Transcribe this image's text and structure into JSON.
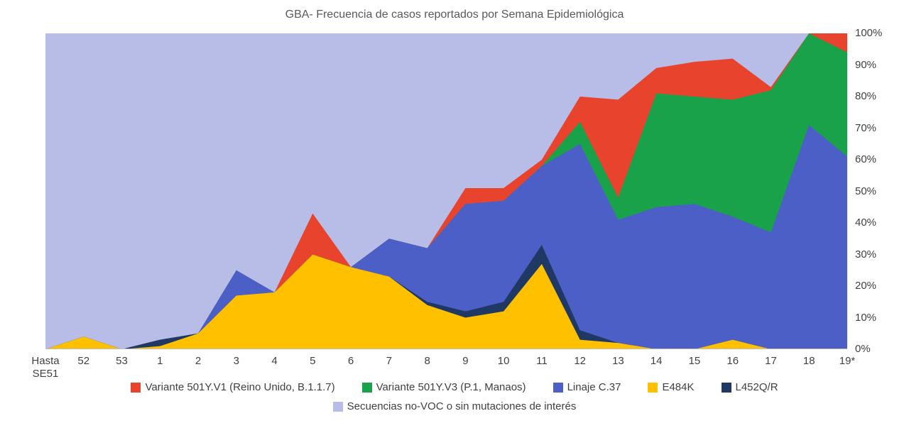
{
  "title": "GBA- Frecuencia de casos reportados por Semana Epidemiológica",
  "chart_data": {
    "type": "area",
    "stacking": "percent",
    "title": "GBA- Frecuencia de casos reportados por Semana Epidemiológica",
    "xlabel": "",
    "ylabel": "",
    "ylim": [
      0,
      100
    ],
    "y_axis_position": "right",
    "grid": false,
    "categories": [
      "Hasta SE51",
      "52",
      "53",
      "1",
      "2",
      "3",
      "4",
      "5",
      "6",
      "7",
      "8",
      "9",
      "10",
      "11",
      "12",
      "13",
      "14",
      "15",
      "16",
      "17",
      "18",
      "19*"
    ],
    "y_ticks": [
      "0%",
      "10%",
      "20%",
      "30%",
      "40%",
      "50%",
      "60%",
      "70%",
      "80%",
      "90%",
      "100%"
    ],
    "series": [
      {
        "name": "E484K",
        "color": "#FFC000",
        "values": [
          0,
          4,
          0,
          1,
          5,
          17,
          18,
          30,
          26,
          23,
          14,
          10,
          12,
          27,
          3,
          2,
          0,
          0,
          3,
          0,
          0,
          0
        ]
      },
      {
        "name": "L452Q/R",
        "color": "#1F3864",
        "values": [
          0,
          0,
          0,
          2,
          0,
          0,
          0,
          0,
          0,
          0,
          1,
          2,
          3,
          6,
          3,
          0,
          0,
          0,
          0,
          0,
          0,
          0
        ]
      },
      {
        "name": "Linaje C.37",
        "color": "#4B5FC6",
        "values": [
          0,
          0,
          0,
          0,
          0,
          8,
          0,
          0,
          0,
          12,
          17,
          34,
          32,
          25,
          59,
          39,
          45,
          46,
          39,
          37,
          71,
          61
        ]
      },
      {
        "name": "Variante 501Y.V3 (P.1, Manaos)",
        "color": "#1AA24B",
        "values": [
          0,
          0,
          0,
          0,
          0,
          0,
          0,
          0,
          0,
          0,
          0,
          0,
          0,
          0,
          7,
          7,
          36,
          34,
          37,
          45,
          29,
          33
        ]
      },
      {
        "name": "Variante 501Y.V1 (Reino Unido, B.1.1.7)",
        "color": "#E8432C",
        "values": [
          0,
          0,
          0,
          0,
          0,
          0,
          0,
          13,
          0,
          0,
          0,
          5,
          4,
          2,
          8,
          31,
          8,
          11,
          13,
          1,
          0,
          6
        ]
      },
      {
        "name": "Secuencias no-VOC o sin mutaciones de interés",
        "color": "#B7BDE7",
        "values": [
          100,
          96,
          100,
          97,
          95,
          75,
          82,
          57,
          74,
          65,
          68,
          49,
          49,
          40,
          20,
          21,
          11,
          9,
          8,
          17,
          0,
          0
        ]
      }
    ],
    "legend_rows": [
      [
        4,
        3,
        2,
        0,
        1
      ],
      [
        5
      ]
    ],
    "legend_position": "bottom"
  }
}
